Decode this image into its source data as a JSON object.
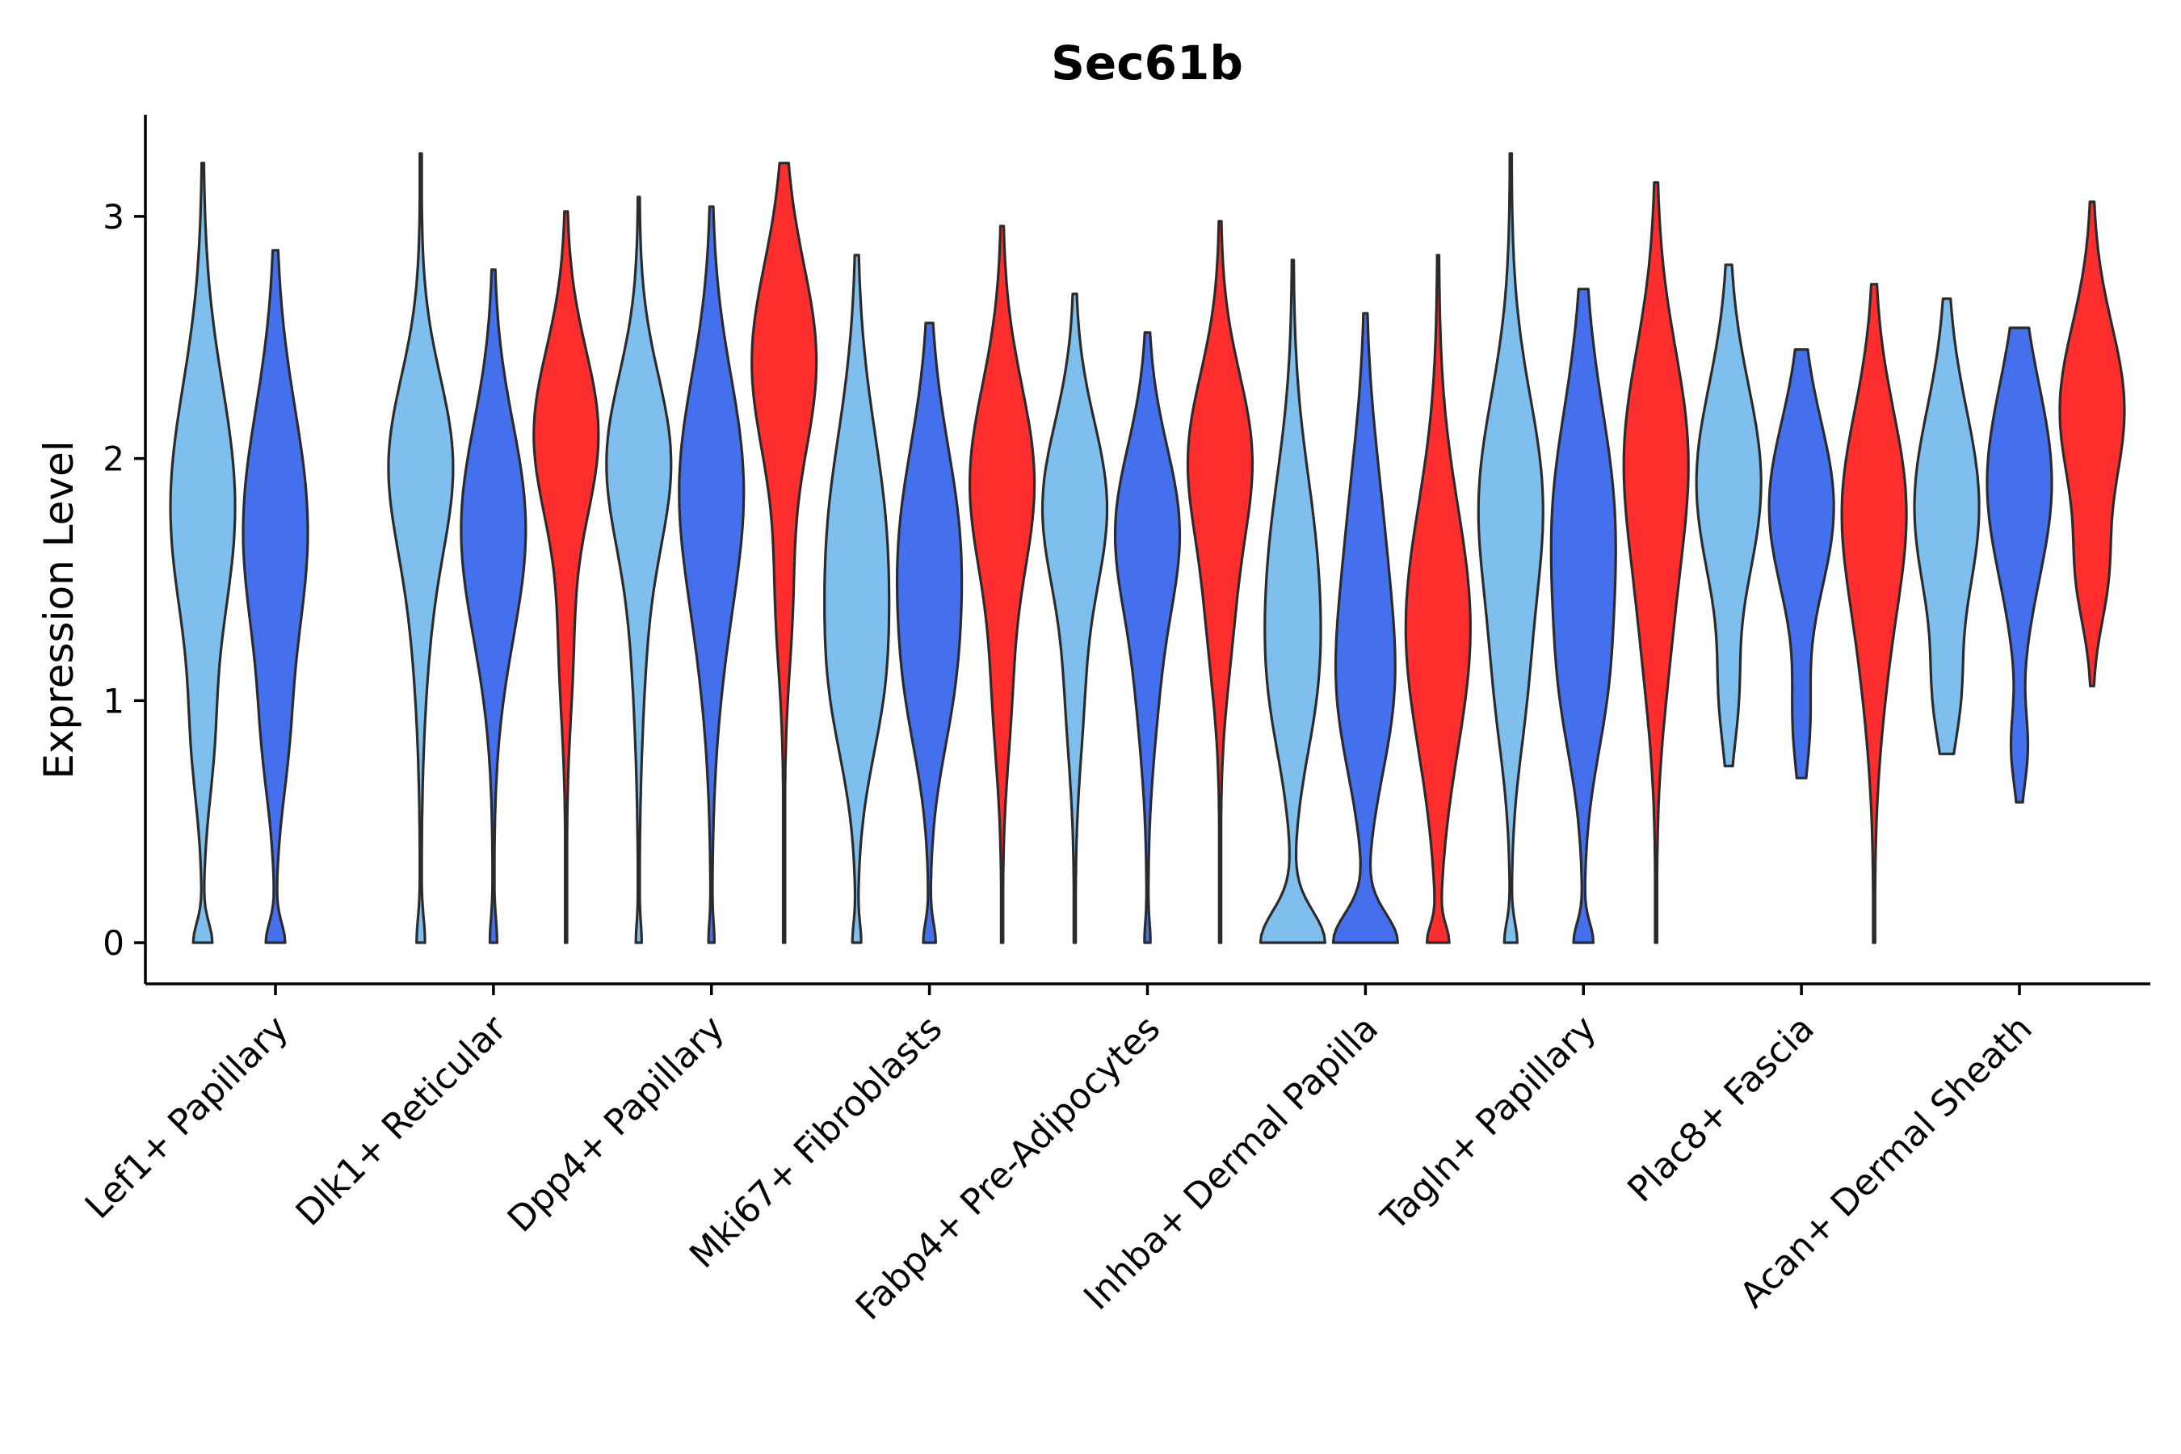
{
  "chart_data": {
    "type": "violin",
    "title": "Sec61b",
    "xlabel": "",
    "ylabel": "Expression Level",
    "ylim": [
      -0.17,
      3.42
    ],
    "yticks": [
      0,
      1,
      2,
      3
    ],
    "grid": false,
    "legend": "none",
    "categories": [
      "Lef1+ Papillary",
      "Dlk1+ Reticular",
      "Dpp4+ Papillary",
      "Mki67+ Fibroblasts",
      "Fabp4+ Pre-Adipocytes",
      "Inhba+ Dermal Papilla",
      "Tagln+ Papillary",
      "Plac8+ Fascia",
      "Acan+ Dermal Sheath"
    ],
    "groups": [
      {
        "name": "group1",
        "color": "#7FBFEE"
      },
      {
        "name": "group2",
        "color": "#4470EE"
      },
      {
        "name": "group3",
        "color": "#FF2E2E"
      }
    ],
    "violins": [
      {
        "category": "Lef1+ Papillary",
        "group": "group1",
        "min": 0,
        "max": 3.22,
        "peaks": [
          [
            0,
            0.09,
            0.08
          ],
          [
            0.8,
            0.07,
            0.25
          ],
          [
            1.8,
            0.32,
            0.5
          ]
        ]
      },
      {
        "category": "Lef1+ Papillary",
        "group": "group2",
        "min": 0,
        "max": 2.86,
        "peaks": [
          [
            0,
            0.09,
            0.08
          ],
          [
            0.8,
            0.07,
            0.25
          ],
          [
            1.7,
            0.32,
            0.5
          ]
        ]
      },
      {
        "category": "Dlk1+ Reticular",
        "group": "group1",
        "min": 0,
        "max": 3.26,
        "peaks": [
          [
            0,
            0.03,
            0.1
          ],
          [
            1.4,
            0.06,
            0.4
          ],
          [
            2.0,
            0.25,
            0.35
          ]
        ]
      },
      {
        "category": "Dlk1+ Reticular",
        "group": "group2",
        "min": 0,
        "max": 2.78,
        "peaks": [
          [
            0,
            0.03,
            0.1
          ],
          [
            1.4,
            0.1,
            0.4
          ],
          [
            1.8,
            0.25,
            0.4
          ]
        ]
      },
      {
        "category": "Dlk1+ Reticular",
        "group": "group3",
        "min": 0,
        "max": 3.02,
        "peaks": [
          [
            1.2,
            0.05,
            0.3
          ],
          [
            2.1,
            0.27,
            0.35
          ]
        ]
      },
      {
        "category": "Dpp4+ Papillary",
        "group": "group1",
        "min": 0,
        "max": 3.08,
        "peaks": [
          [
            0,
            0.02,
            0.08
          ],
          [
            1.3,
            0.05,
            0.4
          ],
          [
            2.0,
            0.27,
            0.35
          ]
        ]
      },
      {
        "category": "Dpp4+ Papillary",
        "group": "group2",
        "min": 0,
        "max": 3.04,
        "peaks": [
          [
            0,
            0.02,
            0.08
          ],
          [
            1.2,
            0.05,
            0.4
          ],
          [
            1.9,
            0.27,
            0.45
          ]
        ]
      },
      {
        "category": "Dpp4+ Papillary",
        "group": "group3",
        "min": 0,
        "max": 3.22,
        "peaks": [
          [
            1.4,
            0.06,
            0.3
          ],
          [
            2.4,
            0.27,
            0.4
          ]
        ]
      },
      {
        "category": "Mki67+ Fibroblasts",
        "group": "group1",
        "min": 0,
        "max": 2.84,
        "peaks": [
          [
            0,
            0.03,
            0.08
          ],
          [
            1.0,
            0.1,
            0.3
          ],
          [
            1.6,
            0.25,
            0.5
          ]
        ]
      },
      {
        "category": "Mki67+ Fibroblasts",
        "group": "group2",
        "min": 0,
        "max": 2.56,
        "peaks": [
          [
            0,
            0.05,
            0.08
          ],
          [
            1.0,
            0.1,
            0.3
          ],
          [
            1.6,
            0.27,
            0.45
          ]
        ]
      },
      {
        "category": "Mki67+ Fibroblasts",
        "group": "group3",
        "min": 0,
        "max": 2.96,
        "peaks": [
          [
            1.0,
            0.06,
            0.3
          ],
          [
            1.9,
            0.27,
            0.4
          ]
        ]
      },
      {
        "category": "Fabp4+ Pre-Adipocytes",
        "group": "group1",
        "min": 0,
        "max": 2.68,
        "peaks": [
          [
            1.0,
            0.06,
            0.3
          ],
          [
            1.8,
            0.27,
            0.35
          ]
        ]
      },
      {
        "category": "Fabp4+ Pre-Adipocytes",
        "group": "group2",
        "min": 0,
        "max": 2.52,
        "peaks": [
          [
            0,
            0.02,
            0.08
          ],
          [
            1.0,
            0.06,
            0.3
          ],
          [
            1.7,
            0.27,
            0.35
          ]
        ]
      },
      {
        "category": "Fabp4+ Pre-Adipocytes",
        "group": "group3",
        "min": 0,
        "max": 2.98,
        "peaks": [
          [
            1.3,
            0.08,
            0.3
          ],
          [
            2.0,
            0.27,
            0.35
          ]
        ]
      },
      {
        "category": "Inhba+ Dermal Papilla",
        "group": "group1",
        "min": 0,
        "max": 2.82,
        "peaks": [
          [
            0,
            0.3,
            0.13
          ],
          [
            1.0,
            0.1,
            0.3
          ],
          [
            1.5,
            0.22,
            0.45
          ]
        ]
      },
      {
        "category": "Inhba+ Dermal Papilla",
        "group": "group2",
        "min": 0,
        "max": 2.6,
        "peaks": [
          [
            0,
            0.3,
            0.12
          ],
          [
            1.0,
            0.2,
            0.35
          ],
          [
            1.6,
            0.16,
            0.45
          ]
        ]
      },
      {
        "category": "Inhba+ Dermal Papilla",
        "group": "group3",
        "min": 0,
        "max": 2.84,
        "peaks": [
          [
            0,
            0.08,
            0.07
          ],
          [
            1.3,
            0.27,
            0.5
          ]
        ]
      },
      {
        "category": "Tagln+ Papillary",
        "group": "group1",
        "min": 0,
        "max": 3.26,
        "peaks": [
          [
            0,
            0.05,
            0.08
          ],
          [
            1.0,
            0.08,
            0.3
          ],
          [
            1.8,
            0.27,
            0.45
          ]
        ]
      },
      {
        "category": "Tagln+ Papillary",
        "group": "group2",
        "min": 0,
        "max": 2.7,
        "peaks": [
          [
            0,
            0.08,
            0.08
          ],
          [
            1.0,
            0.1,
            0.3
          ],
          [
            1.7,
            0.27,
            0.5
          ]
        ]
      },
      {
        "category": "Tagln+ Papillary",
        "group": "group3",
        "min": 0,
        "max": 3.14,
        "peaks": [
          [
            1.2,
            0.07,
            0.35
          ],
          [
            2.0,
            0.27,
            0.45
          ]
        ]
      },
      {
        "category": "Plac8+ Fascia",
        "group": "group1",
        "min": 0.73,
        "max": 2.8,
        "peaks": [
          [
            1.0,
            0.06,
            0.2
          ],
          [
            1.9,
            0.27,
            0.4
          ]
        ]
      },
      {
        "category": "Plac8+ Fascia",
        "group": "group2",
        "min": 0.68,
        "max": 2.45,
        "peaks": [
          [
            0.9,
            0.06,
            0.2
          ],
          [
            1.8,
            0.27,
            0.35
          ]
        ]
      },
      {
        "category": "Plac8+ Fascia",
        "group": "group3",
        "min": 0,
        "max": 2.72,
        "peaks": [
          [
            1.1,
            0.06,
            0.35
          ],
          [
            1.8,
            0.27,
            0.4
          ]
        ]
      },
      {
        "category": "Acan+ Dermal Sheath",
        "group": "group1",
        "min": 0.78,
        "max": 2.66,
        "peaks": [
          [
            1.0,
            0.08,
            0.2
          ],
          [
            1.8,
            0.27,
            0.4
          ]
        ]
      },
      {
        "category": "Acan+ Dermal Sheath",
        "group": "group2",
        "min": 0.58,
        "max": 2.54,
        "peaks": [
          [
            0.8,
            0.06,
            0.15
          ],
          [
            1.9,
            0.27,
            0.4
          ]
        ]
      },
      {
        "category": "Acan+ Dermal Sheath",
        "group": "group3",
        "min": 1.06,
        "max": 3.06,
        "peaks": [
          [
            1.5,
            0.1,
            0.2
          ],
          [
            2.2,
            0.27,
            0.35
          ]
        ]
      }
    ]
  }
}
